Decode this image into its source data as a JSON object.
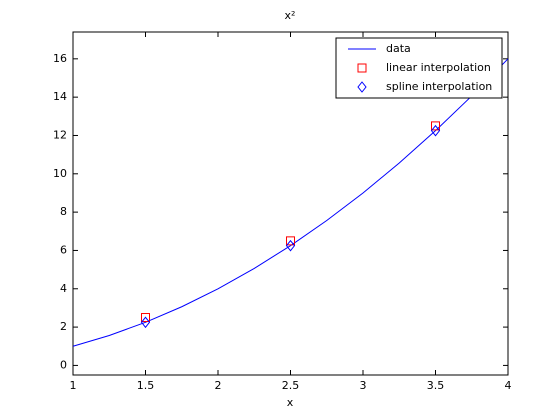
{
  "chart_data": {
    "type": "line",
    "title": "x²",
    "xlabel": "x",
    "xlim": [
      1,
      4
    ],
    "xticks": [
      1,
      1.5,
      2,
      2.5,
      3,
      3.5,
      4
    ],
    "ylim": [
      -0.5,
      17.4
    ],
    "yticks": [
      0,
      2,
      4,
      6,
      8,
      10,
      12,
      14,
      16
    ],
    "grid": false,
    "legend": "upper right",
    "series": [
      {
        "name": "data",
        "color": "#0000ff",
        "marker": "none",
        "x": [
          1,
          1.25,
          1.5,
          1.75,
          2,
          2.25,
          2.5,
          2.75,
          3,
          3.25,
          3.5,
          3.75,
          4
        ],
        "values": [
          1,
          1.5625,
          2.25,
          3.0625,
          4,
          5.0625,
          6.25,
          7.5625,
          9,
          10.5625,
          12.25,
          14.0625,
          16
        ]
      },
      {
        "name": "linear interpolation",
        "color": "#ff0000",
        "marker": "square",
        "x": [
          1.5,
          2.5,
          3.5
        ],
        "values": [
          2.5,
          6.5,
          12.5
        ]
      },
      {
        "name": "spline interpolation",
        "color": "#0000ff",
        "marker": "diamond",
        "x": [
          1.5,
          2.5,
          3.5
        ],
        "values": [
          2.25,
          6.25,
          12.25
        ]
      }
    ]
  }
}
